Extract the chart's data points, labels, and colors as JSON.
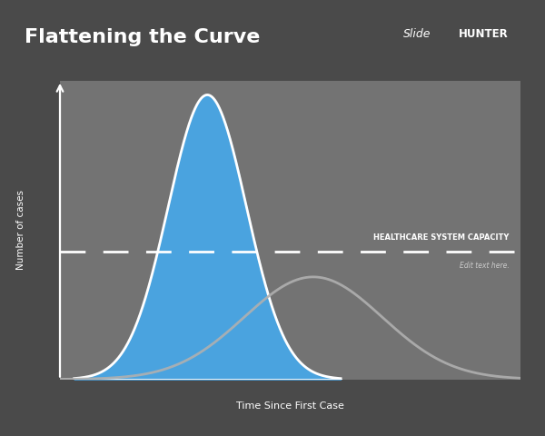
{
  "title": "Flattening the Curve",
  "title_color": "#ffffff",
  "title_fontsize": 16,
  "background_color": "#4a4a4a",
  "plot_bg_color": "#737373",
  "xlabel": "Time Since First Case",
  "ylabel": "Number of cases",
  "dashed_line_y": 0.45,
  "dashed_label": "HEALTHCARE SYSTEM CAPACITY",
  "dashed_sublabel": "Edit text here.",
  "dashed_color": "#ffffff",
  "blue_curve_mu": 3.2,
  "blue_curve_sigma": 0.85,
  "blue_fill_color": "#4aa3df",
  "flat_curve_mu": 5.5,
  "flat_curve_sigma": 1.5,
  "flat_curve_amp": 0.36,
  "flat_curve_color": "#b0b0b0",
  "slide_text": "Slide",
  "hunter_text": "HUNTER",
  "logo_bg_color": "#bb2200"
}
